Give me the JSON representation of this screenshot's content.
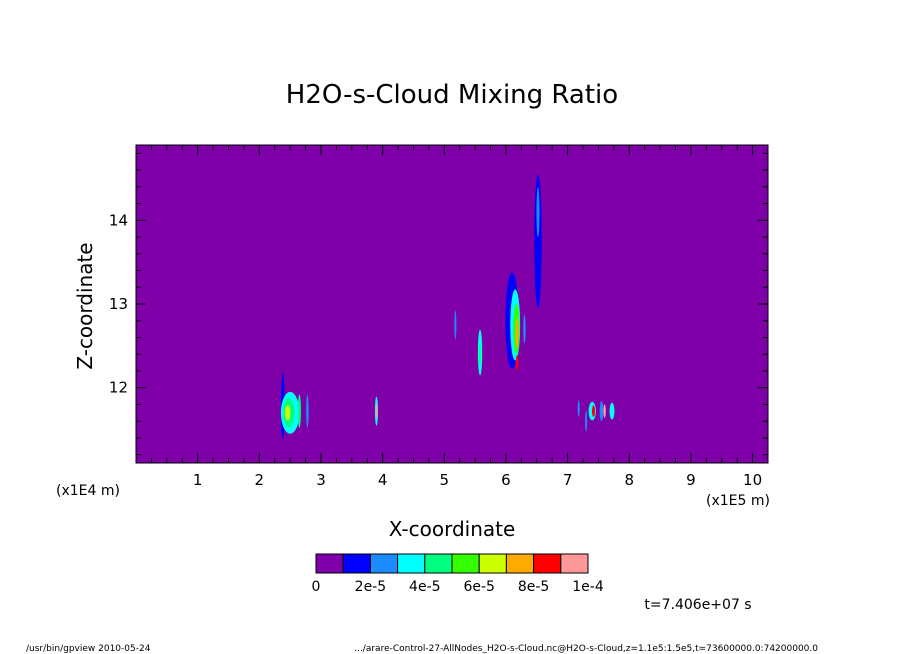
{
  "chart_data": {
    "type": "heatmap",
    "title": "H2O-s-Cloud Mixing Ratio",
    "xlabel": "X-coordinate",
    "ylabel": "Z-coordinate",
    "x_scale_note": "(x1E5 m)",
    "y_scale_note": "(x1E4 m)",
    "xlim": [
      0,
      10.25
    ],
    "ylim": [
      11.1,
      14.9
    ],
    "x_ticks": [
      1,
      2,
      3,
      4,
      5,
      6,
      7,
      8,
      9,
      10
    ],
    "y_ticks": [
      12,
      13,
      14
    ],
    "background_color": "#7f00a8",
    "colorbar": {
      "colors": [
        "#7f00a8",
        "#0000ff",
        "#1a8cff",
        "#00ffff",
        "#00ff80",
        "#33ff00",
        "#ccff00",
        "#ffaa00",
        "#ff0000",
        "#ff9999"
      ],
      "labels": [
        "0",
        "2e-5",
        "4e-5",
        "6e-5",
        "8e-5",
        "1e-4"
      ]
    },
    "features": [
      {
        "x": 2.38,
        "z": 11.78,
        "w": 0.06,
        "h": 0.8,
        "level": 1
      },
      {
        "x": 2.5,
        "z": 11.7,
        "w": 0.3,
        "h": 0.5,
        "level": 3
      },
      {
        "x": 2.48,
        "z": 11.7,
        "w": 0.18,
        "h": 0.35,
        "level": 4
      },
      {
        "x": 2.46,
        "z": 11.7,
        "w": 0.09,
        "h": 0.18,
        "level": 6
      },
      {
        "x": 2.65,
        "z": 11.72,
        "w": 0.05,
        "h": 0.4,
        "level": 4
      },
      {
        "x": 2.78,
        "z": 11.72,
        "w": 0.04,
        "h": 0.4,
        "level": 2
      },
      {
        "x": 3.9,
        "z": 11.72,
        "w": 0.05,
        "h": 0.35,
        "level": 3
      },
      {
        "x": 3.9,
        "z": 11.72,
        "w": 0.03,
        "h": 0.2,
        "level": 9
      },
      {
        "x": 5.18,
        "z": 12.75,
        "w": 0.025,
        "h": 0.35,
        "level": 2
      },
      {
        "x": 5.58,
        "z": 12.42,
        "w": 0.07,
        "h": 0.55,
        "level": 3
      },
      {
        "x": 5.58,
        "z": 12.4,
        "w": 0.035,
        "h": 0.3,
        "level": 4
      },
      {
        "x": 6.1,
        "z": 12.8,
        "w": 0.22,
        "h": 1.15,
        "level": 1
      },
      {
        "x": 6.15,
        "z": 12.75,
        "w": 0.16,
        "h": 0.85,
        "level": 3
      },
      {
        "x": 6.17,
        "z": 12.7,
        "w": 0.1,
        "h": 0.6,
        "level": 5
      },
      {
        "x": 6.18,
        "z": 12.65,
        "w": 0.05,
        "h": 0.35,
        "level": 7
      },
      {
        "x": 6.18,
        "z": 12.3,
        "w": 0.04,
        "h": 0.18,
        "level": 8
      },
      {
        "x": 6.3,
        "z": 12.7,
        "w": 0.04,
        "h": 0.35,
        "level": 2
      },
      {
        "x": 6.52,
        "z": 13.75,
        "w": 0.12,
        "h": 1.6,
        "level": 1
      },
      {
        "x": 6.52,
        "z": 14.1,
        "w": 0.05,
        "h": 0.6,
        "level": 2
      },
      {
        "x": 7.4,
        "z": 11.72,
        "w": 0.12,
        "h": 0.22,
        "level": 3
      },
      {
        "x": 7.42,
        "z": 11.72,
        "w": 0.05,
        "h": 0.14,
        "level": 8
      },
      {
        "x": 7.55,
        "z": 11.72,
        "w": 0.06,
        "h": 0.24,
        "level": 2
      },
      {
        "x": 7.6,
        "z": 11.72,
        "w": 0.04,
        "h": 0.16,
        "level": 9
      },
      {
        "x": 7.72,
        "z": 11.72,
        "w": 0.08,
        "h": 0.2,
        "level": 3
      },
      {
        "x": 7.3,
        "z": 11.6,
        "w": 0.02,
        "h": 0.25,
        "level": 2
      },
      {
        "x": 7.18,
        "z": 11.75,
        "w": 0.02,
        "h": 0.2,
        "level": 2
      }
    ]
  },
  "time_label": "t=7.406e+07 s",
  "footer_left": "/usr/bin/gpview   2010-05-24",
  "footer_right": ".../arare-Control-27-AllNodes_H2O-s-Cloud.nc@H2O-s-Cloud,z=1.1e5:1.5e5,t=73600000.0:74200000.0"
}
